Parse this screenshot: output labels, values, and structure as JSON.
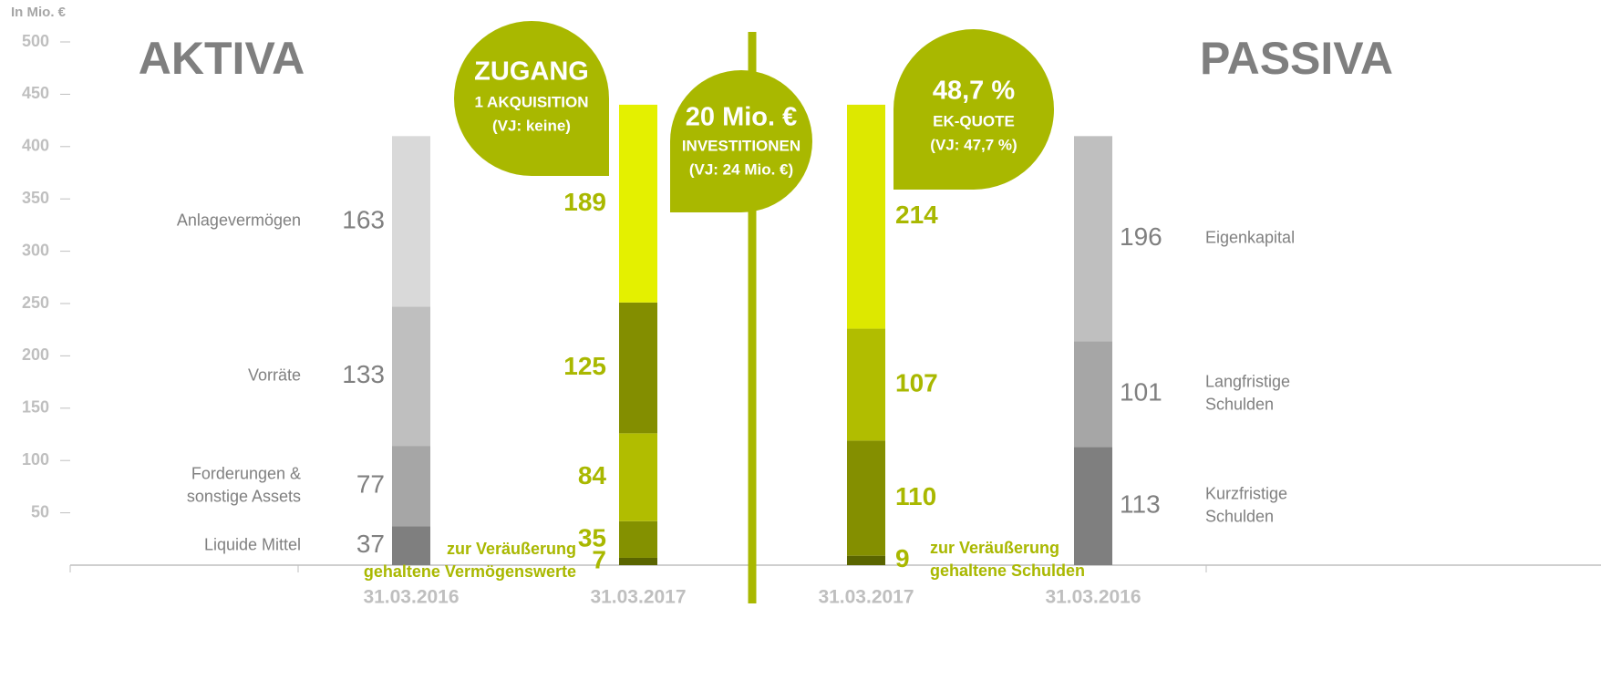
{
  "chart_data": {
    "type": "stacked-bar",
    "unit_label": "In Mio. €",
    "left_title": "AKTIVA",
    "right_title": "PASSIVA",
    "ylim": [
      0,
      500
    ],
    "yticks": [
      50,
      100,
      150,
      200,
      250,
      300,
      350,
      400,
      450,
      500
    ],
    "categories": [
      "31.03.2016",
      "31.03.2017",
      "31.03.2017",
      "31.03.2016"
    ],
    "stacks": [
      {
        "label_color": "#808080",
        "segments": [
          {
            "name": [
              "Liquide Mittel"
            ],
            "value": 37,
            "color": "#7f7f7f"
          },
          {
            "name": [
              "Forderungen &",
              "sonstige Assets"
            ],
            "value": 77,
            "color": "#a6a6a6"
          },
          {
            "name": [
              "Vorräte"
            ],
            "value": 133,
            "color": "#bfbfbf"
          },
          {
            "name": [
              "Anlagevermögen"
            ],
            "value": 163,
            "color": "#d9d9d9"
          }
        ]
      },
      {
        "label_color": "#a9b800",
        "segments": [
          {
            "name": [
              "zur Veräußerung",
              "gehaltene Vermögenswerte"
            ],
            "value": 7,
            "color": "#5a6500"
          },
          {
            "value": 35,
            "color": "#849100"
          },
          {
            "value": 84,
            "color": "#b1bd00"
          },
          {
            "value": 125,
            "color": "#838e00"
          },
          {
            "value": 189,
            "color": "#e4f000"
          }
        ]
      },
      {
        "label_color": "#a9b800",
        "segments": [
          {
            "name": [
              "zur Veräußerung",
              "gehaltene Schulden"
            ],
            "value": 9,
            "color": "#5a6500"
          },
          {
            "value": 110,
            "color": "#848f00"
          },
          {
            "value": 107,
            "color": "#b1bd00"
          },
          {
            "value": 214,
            "color": "#dde800"
          }
        ]
      },
      {
        "label_color": "#808080",
        "segments": [
          {
            "name": [
              "Kurzfristige",
              "Schulden"
            ],
            "value": 113,
            "color": "#7f7f7f"
          },
          {
            "name": [
              "Langfristige",
              "Schulden"
            ],
            "value": 101,
            "color": "#a6a6a6"
          },
          {
            "name": [
              "Eigenkapital"
            ],
            "value": 196,
            "color": "#bfbfbf"
          }
        ]
      }
    ],
    "annotations": [
      {
        "lines": [
          "ZUGANG",
          "1 AKQUISITION",
          "(VJ: keine)"
        ],
        "color": "#a9b800"
      },
      {
        "lines": [
          "20 Mio. €",
          "INVESTITIONEN",
          "(VJ: 24 Mio. €)"
        ],
        "color": "#a9b800"
      },
      {
        "lines": [
          "48,7 %",
          "EK-QUOTE",
          "(VJ: 47,7 %)"
        ],
        "color": "#a9b800"
      }
    ]
  }
}
